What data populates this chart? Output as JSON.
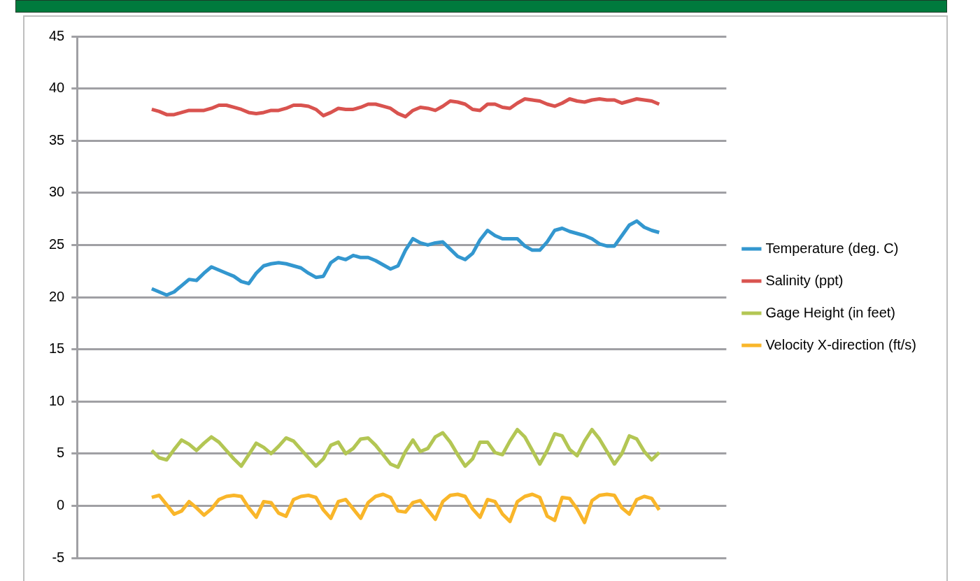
{
  "chart_data": {
    "type": "line",
    "categories": [
      null,
      null,
      null,
      null,
      null,
      null,
      null,
      null,
      null,
      null,
      null,
      null,
      null,
      null,
      null,
      null,
      null,
      null,
      null,
      null,
      null,
      null,
      null,
      null,
      null,
      null,
      null,
      null,
      null,
      null,
      null,
      null,
      null,
      null,
      null,
      null,
      null,
      null,
      null,
      null,
      null,
      null,
      null,
      null,
      null,
      null,
      null,
      null,
      null,
      null,
      null,
      null,
      null,
      null,
      null,
      null,
      null,
      null,
      null,
      null,
      null,
      null,
      null,
      null,
      null,
      null,
      null,
      null,
      null,
      null,
      null,
      null,
      null,
      null,
      null,
      null,
      null,
      null,
      null,
      null,
      null,
      null,
      null,
      null,
      null,
      null,
      null,
      null
    ],
    "ylim": [
      -5,
      45
    ],
    "yticks": [
      -5,
      0,
      5,
      10,
      15,
      20,
      25,
      30,
      35,
      40,
      45
    ],
    "grid": "y",
    "legend": "right",
    "tick_labels": "y",
    "series": [
      {
        "name": "Temperature (deg. C)",
        "color": "#3397cf",
        "values": [
          null,
          null,
          null,
          null,
          null,
          null,
          null,
          null,
          null,
          null,
          20.8,
          20.5,
          20.2,
          20.5,
          21.1,
          21.7,
          21.6,
          22.3,
          22.9,
          22.6,
          22.3,
          22.0,
          21.5,
          21.3,
          22.3,
          23.0,
          23.2,
          23.3,
          23.2,
          23.0,
          22.8,
          22.3,
          21.9,
          22.0,
          23.3,
          23.8,
          23.6,
          24.0,
          23.8,
          23.8,
          23.5,
          23.1,
          22.7,
          23.0,
          24.5,
          25.6,
          25.2,
          25.0,
          25.2,
          25.3,
          24.6,
          23.9,
          23.6,
          24.2,
          25.5,
          26.4,
          25.9,
          25.6,
          25.6,
          25.6,
          24.9,
          24.5,
          24.5,
          25.3,
          26.4,
          26.6,
          26.3,
          26.1,
          25.9,
          25.6,
          25.1,
          24.9,
          24.9,
          25.9,
          26.9,
          27.3,
          26.7,
          26.4,
          26.2,
          null,
          null,
          null,
          null,
          null,
          null,
          null,
          null,
          null
        ]
      },
      {
        "name": "Salinity (ppt)",
        "color": "#d9534f",
        "values": [
          null,
          null,
          null,
          null,
          null,
          null,
          null,
          null,
          null,
          null,
          38.0,
          37.8,
          37.5,
          37.5,
          37.7,
          37.9,
          37.9,
          37.9,
          38.1,
          38.4,
          38.4,
          38.2,
          38.0,
          37.7,
          37.6,
          37.7,
          37.9,
          37.9,
          38.1,
          38.4,
          38.4,
          38.3,
          38.0,
          37.4,
          37.7,
          38.1,
          38.0,
          38.0,
          38.2,
          38.5,
          38.5,
          38.3,
          38.1,
          37.6,
          37.3,
          37.9,
          38.2,
          38.1,
          37.9,
          38.3,
          38.8,
          38.7,
          38.5,
          38.0,
          37.9,
          38.5,
          38.5,
          38.2,
          38.1,
          38.6,
          39.0,
          38.9,
          38.8,
          38.5,
          38.3,
          38.6,
          39.0,
          38.8,
          38.7,
          38.9,
          39.0,
          38.9,
          38.9,
          38.6,
          38.8,
          39.0,
          38.9,
          38.8,
          38.5,
          null,
          null,
          null,
          null,
          null,
          null,
          null,
          null,
          null
        ]
      },
      {
        "name": "Gage Height (in feet)",
        "color": "#b3c654",
        "values": [
          null,
          null,
          null,
          null,
          null,
          null,
          null,
          null,
          null,
          null,
          5.3,
          4.6,
          4.4,
          5.4,
          6.3,
          5.9,
          5.3,
          6.0,
          6.6,
          6.1,
          5.3,
          4.5,
          3.8,
          4.9,
          6.0,
          5.6,
          5.0,
          5.7,
          6.5,
          6.2,
          5.4,
          4.6,
          3.8,
          4.5,
          5.8,
          6.1,
          5.0,
          5.5,
          6.4,
          6.5,
          5.8,
          4.9,
          4.0,
          3.7,
          5.2,
          6.3,
          5.2,
          5.5,
          6.6,
          7.0,
          6.1,
          4.9,
          3.8,
          4.5,
          6.1,
          6.1,
          5.1,
          4.9,
          6.2,
          7.3,
          6.6,
          5.3,
          4.0,
          5.3,
          6.9,
          6.7,
          5.4,
          4.8,
          6.2,
          7.3,
          6.4,
          5.2,
          4.0,
          5.0,
          6.7,
          6.4,
          5.2,
          4.4,
          5.1,
          null,
          null,
          null,
          null,
          null,
          null,
          null,
          null,
          null
        ]
      },
      {
        "name": "Velocity X-direction (ft/s)",
        "color": "#f9b62a",
        "values": [
          null,
          null,
          null,
          null,
          null,
          null,
          null,
          null,
          null,
          null,
          0.8,
          1.0,
          0.1,
          -0.8,
          -0.5,
          0.4,
          -0.2,
          -0.9,
          -0.3,
          0.6,
          0.9,
          1.0,
          0.9,
          -0.2,
          -1.1,
          0.4,
          0.3,
          -0.7,
          -1.0,
          0.6,
          0.9,
          1.0,
          0.8,
          -0.4,
          -1.2,
          0.4,
          0.6,
          -0.3,
          -1.2,
          0.3,
          0.9,
          1.1,
          0.8,
          -0.5,
          -0.6,
          0.3,
          0.5,
          -0.4,
          -1.3,
          0.4,
          1.0,
          1.1,
          0.9,
          -0.3,
          -1.1,
          0.6,
          0.4,
          -0.8,
          -1.5,
          0.4,
          0.9,
          1.1,
          0.8,
          -1.0,
          -1.4,
          0.8,
          0.7,
          -0.3,
          -1.6,
          0.5,
          1.0,
          1.1,
          1.0,
          -0.2,
          -0.8,
          0.6,
          0.9,
          0.7,
          -0.4,
          null,
          null,
          null,
          null,
          null,
          null,
          null,
          null,
          null
        ]
      }
    ]
  }
}
